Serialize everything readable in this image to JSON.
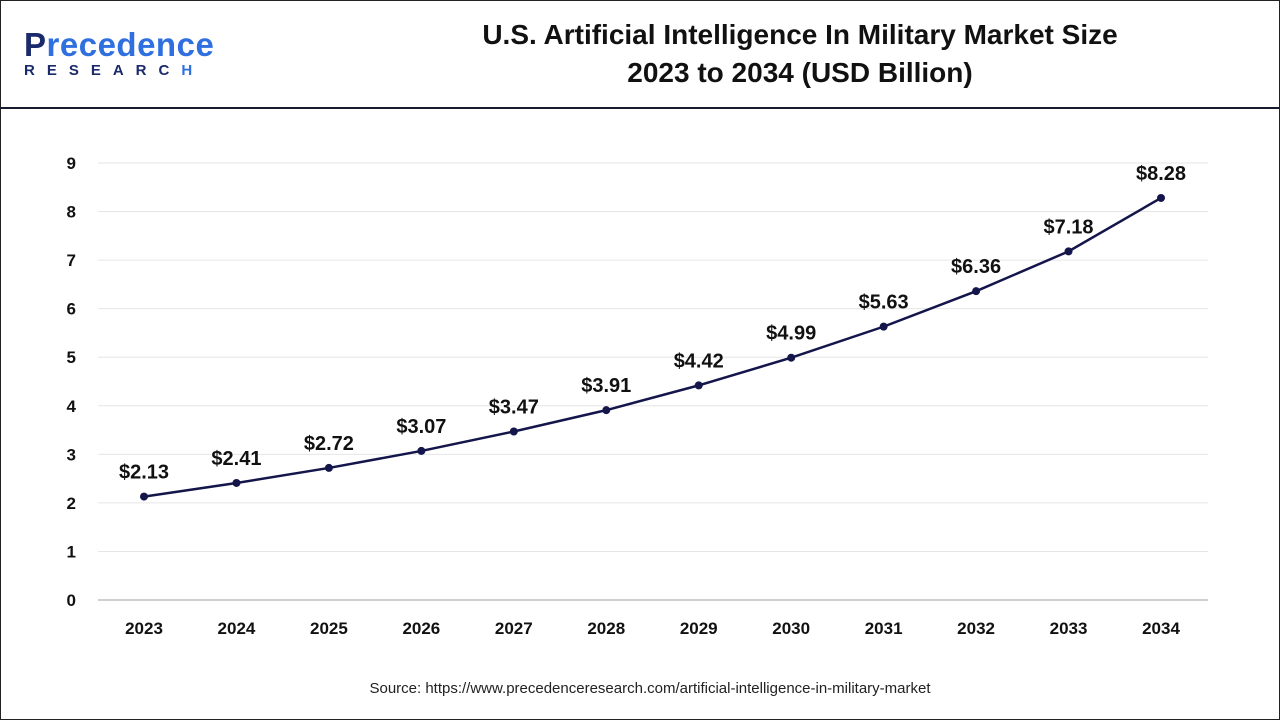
{
  "logo": {
    "text_main": "Precedence",
    "text_sub": "RESEARCH"
  },
  "title_line1": "U.S. Artificial Intelligence In Military Market Size",
  "title_line2": "2023 to 2034 (USD Billion)",
  "source": "Source: https://www.precedenceresearch.com/artificial-intelligence-in-military-market",
  "chart_data": {
    "type": "line",
    "title": "U.S. Artificial Intelligence In Military Market Size 2023 to 2034 (USD Billion)",
    "categories": [
      "2023",
      "2024",
      "2025",
      "2026",
      "2027",
      "2028",
      "2029",
      "2030",
      "2031",
      "2032",
      "2033",
      "2034"
    ],
    "values": [
      2.13,
      2.41,
      2.72,
      3.07,
      3.47,
      3.91,
      4.42,
      4.99,
      5.63,
      6.36,
      7.18,
      8.28
    ],
    "data_labels": [
      "$2.13",
      "$2.41",
      "$2.72",
      "$3.07",
      "$3.47",
      "$3.91",
      "$4.42",
      "$4.99",
      "$5.63",
      "$6.36",
      "$7.18",
      "$8.28"
    ],
    "yticks": [
      "0",
      "1",
      "2",
      "3",
      "4",
      "5",
      "6",
      "7",
      "8",
      "9"
    ],
    "ylim": [
      0,
      9
    ],
    "grid": true,
    "line_color": "#14154a"
  }
}
